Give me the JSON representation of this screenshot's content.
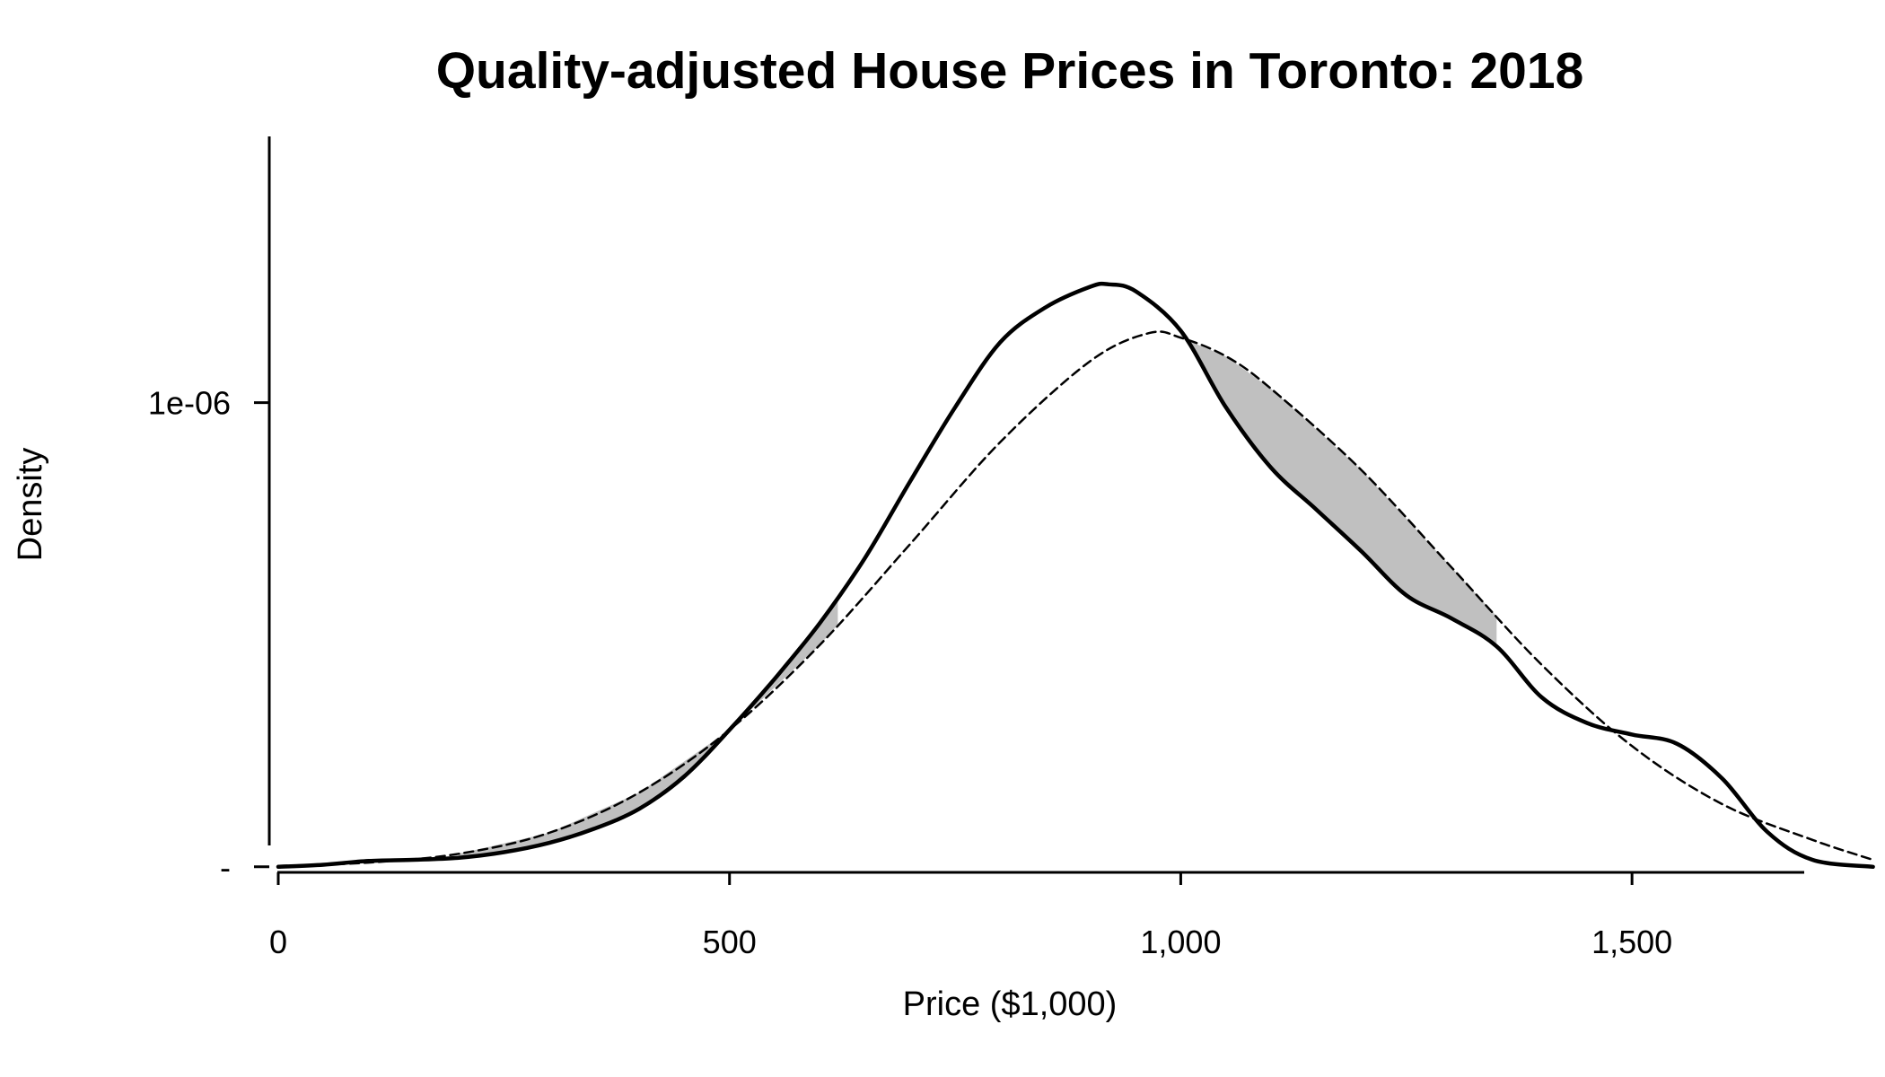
{
  "chart_data": {
    "type": "area",
    "title": "Quality-adjusted House Prices in Toronto: 2018",
    "xlabel": "Price ($1,000)",
    "ylabel": "Density",
    "xlim": [
      0,
      1840
    ],
    "ylim": [
      -7e-08,
      1.68e-06
    ],
    "x_ticks": [
      {
        "value": 0,
        "label": "0"
      },
      {
        "value": 500,
        "label": "500"
      },
      {
        "value": 1000,
        "label": "1,000"
      },
      {
        "value": 1500,
        "label": "1,500"
      }
    ],
    "y_ticks": [
      {
        "value": 0,
        "label": "-"
      },
      {
        "value": 1e-06,
        "label": "1e-06"
      }
    ],
    "grid": false,
    "legend": "none",
    "shading": {
      "color": "#c0c0c0",
      "regions_x": [
        [
          200,
          620
        ],
        [
          1000,
          1350
        ]
      ]
    },
    "series": [
      {
        "style": "solid",
        "color": "#000000",
        "x": [
          0,
          50,
          100,
          150,
          200,
          250,
          300,
          350,
          400,
          450,
          500,
          550,
          600,
          650,
          700,
          750,
          800,
          850,
          900,
          920,
          950,
          1000,
          1050,
          1100,
          1150,
          1200,
          1250,
          1300,
          1350,
          1400,
          1450,
          1500,
          1550,
          1600,
          1650,
          1700,
          1767
        ],
        "y": [
          0.0,
          4.5e-09,
          1.25e-08,
          1.5e-08,
          1.95e-08,
          3.15e-08,
          5.15e-08,
          8.2e-08,
          1.25e-07,
          1.95e-07,
          2.95e-07,
          4.05e-07,
          5.25e-07,
          6.65e-07,
          8.3e-07,
          9.9e-07,
          1.13e-06,
          1.205e-06,
          1.25e-06,
          1.255e-06,
          1.24e-06,
          1.155e-06,
          9.9e-07,
          8.6e-07,
          7.7e-07,
          6.8e-07,
          5.85e-07,
          5.35e-07,
          4.75e-07,
          3.65e-07,
          3.1e-07,
          2.85e-07,
          2.65e-07,
          1.9e-07,
          7.5e-08,
          1.5e-08,
          0.0
        ]
      },
      {
        "style": "dashed",
        "color": "#000000",
        "x": [
          0,
          100,
          200,
          300,
          400,
          500,
          600,
          700,
          800,
          900,
          965,
          1000,
          1050,
          1100,
          1200,
          1300,
          1400,
          1500,
          1600,
          1700,
          1767
        ],
        "y": [
          2e-09,
          9e-09,
          2.8e-08,
          7.3e-08,
          1.6e-07,
          2.95e-07,
          4.78e-07,
          6.95e-07,
          9.15e-07,
          1.09e-06,
          1.15e-06,
          1.14e-06,
          1.1e-06,
          1.03e-06,
          8.55e-07,
          6.45e-07,
          4.35e-07,
          2.6e-07,
          1.35e-07,
          5.8e-08,
          1.5e-08
        ]
      }
    ]
  }
}
